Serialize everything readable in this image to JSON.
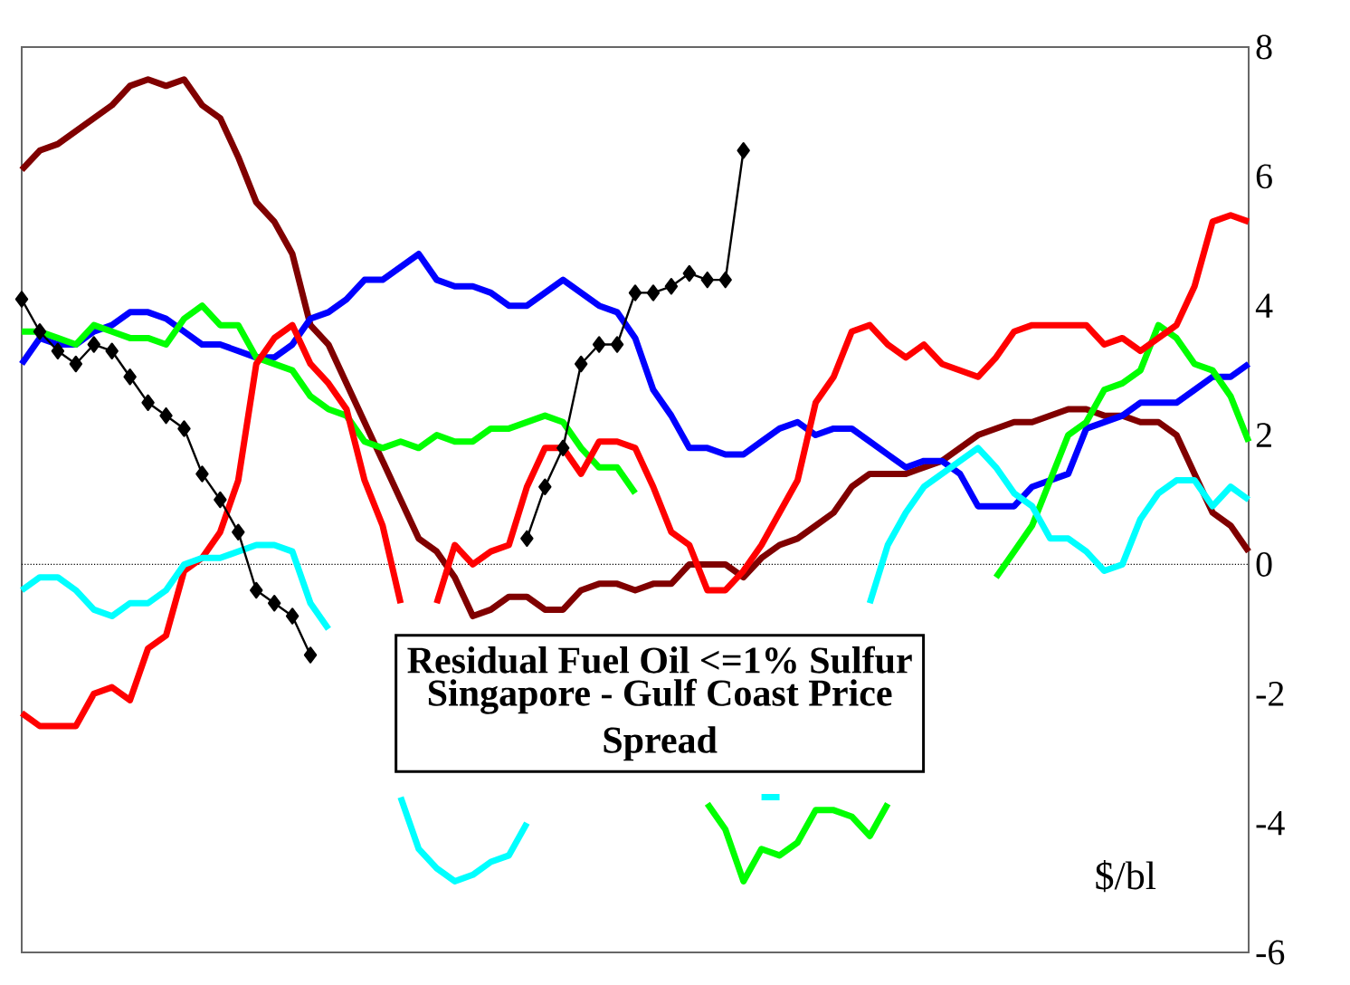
{
  "chart_data": {
    "type": "line",
    "title": "Residual Fuel Oil <=1% Sulfur",
    "subtitle": "Singapore - Gulf Coast Price Spread",
    "annotations": [
      "$/bl"
    ],
    "categories": [
      null,
      null,
      null,
      null,
      null,
      null,
      null,
      null,
      null,
      null,
      null,
      null,
      null,
      null,
      null,
      null,
      null,
      null,
      null,
      null,
      null,
      null,
      null,
      null,
      null,
      null,
      null,
      null,
      null,
      null,
      null,
      null,
      null,
      null,
      null,
      null,
      null,
      null,
      null,
      null,
      null,
      null,
      null,
      null,
      null,
      null,
      null,
      null,
      null,
      null,
      null,
      null,
      null,
      null,
      null,
      null,
      null,
      null,
      null,
      null,
      null,
      null,
      null,
      null,
      null,
      null,
      null,
      null,
      null
    ],
    "ylim": [
      -6,
      8
    ],
    "yticks": [
      -6,
      -4,
      -2,
      0,
      2,
      4,
      6,
      8
    ],
    "tick_labels": "y",
    "grid": false,
    "ref_lines": [
      {
        "axis": "y",
        "value": 0,
        "color": "#000000",
        "line_style": "dotted"
      }
    ],
    "series": [
      {
        "color": "#800000",
        "values": [
          6.1,
          6.4,
          6.5,
          6.7,
          6.9,
          7.1,
          7.4,
          7.5,
          7.4,
          7.5,
          7.1,
          6.9,
          6.3,
          5.6,
          5.3,
          4.8,
          3.7,
          3.4,
          2.8,
          2.2,
          1.6,
          1.0,
          0.4,
          0.2,
          -0.2,
          -0.8,
          -0.7,
          -0.5,
          -0.5,
          -0.7,
          -0.7,
          -0.4,
          -0.3,
          -0.3,
          -0.4,
          -0.3,
          -0.3,
          0,
          0,
          0,
          -0.2,
          0.1,
          0.3,
          0.4,
          0.6,
          0.8,
          1.2,
          1.4,
          1.4,
          1.4,
          1.5,
          1.6,
          1.8,
          2.0,
          2.1,
          2.2,
          2.2,
          2.3,
          2.4,
          2.4,
          2.3,
          2.3,
          2.2,
          2.2,
          2.0,
          1.4,
          0.8,
          0.6,
          0.2
        ]
      },
      {
        "color": "#0000ff",
        "values": [
          3.1,
          3.5,
          3.4,
          3.4,
          3.6,
          3.7,
          3.9,
          3.9,
          3.8,
          3.6,
          3.4,
          3.4,
          3.3,
          3.2,
          3.2,
          3.4,
          3.8,
          3.9,
          4.1,
          4.4,
          4.4,
          4.6,
          4.8,
          4.4,
          4.3,
          4.3,
          4.2,
          4.0,
          4.0,
          4.2,
          4.4,
          4.2,
          4.0,
          3.9,
          3.5,
          2.7,
          2.3,
          1.8,
          1.8,
          1.7,
          1.7,
          1.9,
          2.1,
          2.2,
          2.0,
          2.1,
          2.1,
          1.9,
          1.7,
          1.5,
          1.6,
          1.6,
          1.4,
          0.9,
          0.9,
          0.9,
          1.2,
          1.3,
          1.4,
          2.1,
          2.2,
          2.3,
          2.5,
          2.5,
          2.5,
          2.7,
          2.9,
          2.9,
          3.1
        ]
      },
      {
        "color": "#00ff00",
        "values": [
          3.6,
          3.6,
          3.5,
          3.4,
          3.7,
          3.6,
          3.5,
          3.5,
          3.4,
          3.8,
          4.0,
          3.7,
          3.7,
          3.2,
          3.1,
          3.0,
          2.6,
          2.4,
          2.3,
          1.9,
          1.8,
          1.9,
          1.8,
          2.0,
          1.9,
          1.9,
          2.1,
          2.1,
          2.2,
          2.3,
          2.2,
          1.8,
          1.5,
          1.5,
          1.1,
          null,
          null,
          null,
          -3.7,
          -4.1,
          -4.9,
          -4.4,
          -4.5,
          -4.3,
          -3.8,
          -3.8,
          -3.9,
          -4.2,
          -3.7,
          null,
          null,
          null,
          null,
          null,
          -0.2,
          0.2,
          0.6,
          1.3,
          2.0,
          2.2,
          2.7,
          2.8,
          3.0,
          3.7,
          3.5,
          3.1,
          3.0,
          2.6,
          1.9
        ]
      },
      {
        "color": "#ff0000",
        "values": [
          -2.3,
          -2.5,
          -2.5,
          -2.5,
          -2.0,
          -1.9,
          -2.1,
          -1.3,
          -1.1,
          -0.1,
          0.1,
          0.5,
          1.3,
          3.1,
          3.5,
          3.7,
          3.1,
          2.8,
          2.4,
          1.3,
          0.6,
          -0.6,
          null,
          -0.6,
          0.3,
          0.0,
          0.2,
          0.3,
          1.2,
          1.8,
          1.8,
          1.4,
          1.9,
          1.9,
          1.8,
          1.2,
          0.5,
          0.3,
          -0.4,
          -0.4,
          -0.1,
          0.3,
          0.8,
          1.3,
          2.5,
          2.9,
          3.6,
          3.7,
          3.4,
          3.2,
          3.4,
          3.1,
          3.0,
          2.9,
          3.2,
          3.6,
          3.7,
          3.7,
          3.7,
          3.7,
          3.4,
          3.5,
          3.3,
          3.5,
          3.7,
          4.3,
          5.3,
          5.4,
          5.3
        ]
      },
      {
        "color": "#00ffff",
        "values": [
          -0.4,
          -0.2,
          -0.2,
          -0.4,
          -0.7,
          -0.8,
          -0.6,
          -0.6,
          -0.4,
          0,
          0.1,
          0.1,
          0.2,
          0.3,
          0.3,
          0.2,
          -0.6,
          -1.0,
          null,
          null,
          null,
          -3.6,
          -4.4,
          -4.7,
          -4.9,
          -4.8,
          -4.6,
          -4.5,
          -4.0,
          null,
          null,
          null,
          null,
          null,
          null,
          null,
          null,
          null,
          null,
          null,
          null,
          -3.6,
          -3.6,
          null,
          null,
          null,
          null,
          -0.6,
          0.3,
          0.8,
          1.2,
          1.4,
          1.6,
          1.8,
          1.5,
          1.1,
          0.9,
          0.4,
          0.4,
          0.2,
          -0.1,
          0,
          0.7,
          1.1,
          1.3,
          1.3,
          0.9,
          1.2,
          1.0
        ]
      },
      {
        "color": "#000000",
        "marker": "diamond",
        "values": [
          4.1,
          3.6,
          3.3,
          3.1,
          3.4,
          3.3,
          2.9,
          2.5,
          2.3,
          2.1,
          1.4,
          1.0,
          0.5,
          -0.4,
          -0.6,
          -0.8,
          -1.4,
          null,
          null,
          null,
          null,
          null,
          null,
          null,
          null,
          null,
          null,
          null,
          0.4,
          1.2,
          1.8,
          3.1,
          3.4,
          3.4,
          4.2,
          4.2,
          4.3,
          4.5,
          4.4,
          4.4,
          6.4,
          null,
          null,
          null,
          null,
          null,
          null,
          null,
          null,
          null,
          null,
          null,
          null,
          null,
          null,
          null,
          null,
          null,
          null,
          null,
          null,
          null,
          null,
          null,
          null,
          null,
          null,
          null,
          null
        ]
      }
    ]
  }
}
